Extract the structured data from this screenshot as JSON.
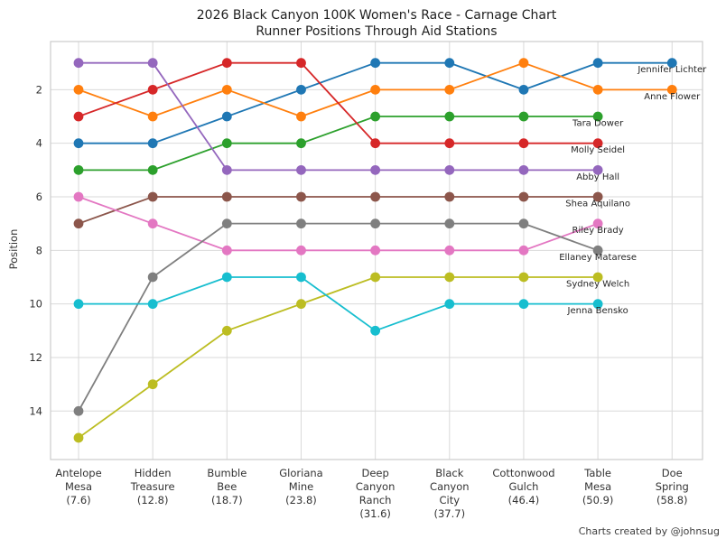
{
  "header": {
    "title": "2026 Black Canyon 100K Women's Race - Carnage Chart",
    "subtitle": "Runner Positions Through Aid Stations"
  },
  "footer": {
    "credit": "Charts created by @johnsug"
  },
  "chart_data": {
    "type": "line",
    "variant": "bump-chart",
    "title": "2026 Black Canyon 100K Women's Race - Carnage Chart",
    "subtitle": "Runner Positions Through Aid Stations",
    "xlabel": "",
    "ylabel": "Position",
    "y_axis_inverted": true,
    "grid": true,
    "legend_position": "labels-at-line-ends",
    "yticks": [
      2,
      4,
      6,
      8,
      10,
      12,
      14
    ],
    "ylim": [
      0.2,
      15.8
    ],
    "categories": [
      "Antelope Mesa (7.6)",
      "Hidden Treasure (12.8)",
      "Bumble Bee (18.7)",
      "Gloriana Mine (23.8)",
      "Deep Canyon Ranch (31.6)",
      "Black Canyon City (37.7)",
      "Cottonwood Gulch (46.4)",
      "Table Mesa (50.9)",
      "Doe Spring (58.8)"
    ],
    "category_label_lines": [
      [
        "Antelope",
        "Mesa",
        "(7.6)"
      ],
      [
        "Hidden",
        "Treasure",
        "(12.8)"
      ],
      [
        "Bumble",
        "Bee",
        "(18.7)"
      ],
      [
        "Gloriana",
        "Mine",
        "(23.8)"
      ],
      [
        "Deep",
        "Canyon",
        "Ranch",
        "(31.6)"
      ],
      [
        "Black",
        "Canyon",
        "City",
        "(37.7)"
      ],
      [
        "Cottonwood",
        "Gulch",
        "(46.4)"
      ],
      [
        "Table",
        "Mesa",
        "(50.9)"
      ],
      [
        "Doe",
        "Spring",
        "(58.8)"
      ]
    ],
    "series": [
      {
        "name": "Jennifer Lichter",
        "color": "#1f77b4",
        "positions": [
          4,
          4,
          3,
          2,
          1,
          1,
          2,
          1,
          1
        ]
      },
      {
        "name": "Anne Flower",
        "color": "#ff7f0e",
        "positions": [
          2,
          3,
          2,
          3,
          2,
          2,
          1,
          2,
          2
        ]
      },
      {
        "name": "Tara Dower",
        "color": "#2ca02c",
        "positions": [
          5,
          5,
          4,
          4,
          3,
          3,
          3,
          3,
          null
        ]
      },
      {
        "name": "Molly Seidel",
        "color": "#d62728",
        "positions": [
          3,
          2,
          1,
          1,
          4,
          4,
          4,
          4,
          null
        ]
      },
      {
        "name": "Abby Hall",
        "color": "#9467bd",
        "positions": [
          1,
          1,
          5,
          5,
          5,
          5,
          5,
          5,
          null
        ]
      },
      {
        "name": "Shea Aquilano",
        "color": "#8c564b",
        "positions": [
          7,
          6,
          6,
          6,
          6,
          6,
          6,
          6,
          null
        ]
      },
      {
        "name": "Riley Brady",
        "color": "#e377c2",
        "positions": [
          6,
          7,
          8,
          8,
          8,
          8,
          8,
          7,
          null
        ]
      },
      {
        "name": "Ellaney Matarese",
        "color": "#7f7f7f",
        "positions": [
          14,
          9,
          7,
          7,
          7,
          7,
          7,
          8,
          null
        ]
      },
      {
        "name": "Sydney Welch",
        "color": "#bcbd22",
        "positions": [
          15,
          13,
          11,
          10,
          9,
          9,
          9,
          9,
          null
        ]
      },
      {
        "name": "Jenna Bensko",
        "color": "#17becf",
        "positions": [
          10,
          10,
          9,
          9,
          11,
          10,
          10,
          10,
          null
        ]
      }
    ],
    "style": {
      "grid_color": "#d9d9d9",
      "spine_color": "#cccccc",
      "background": "#ffffff"
    }
  }
}
